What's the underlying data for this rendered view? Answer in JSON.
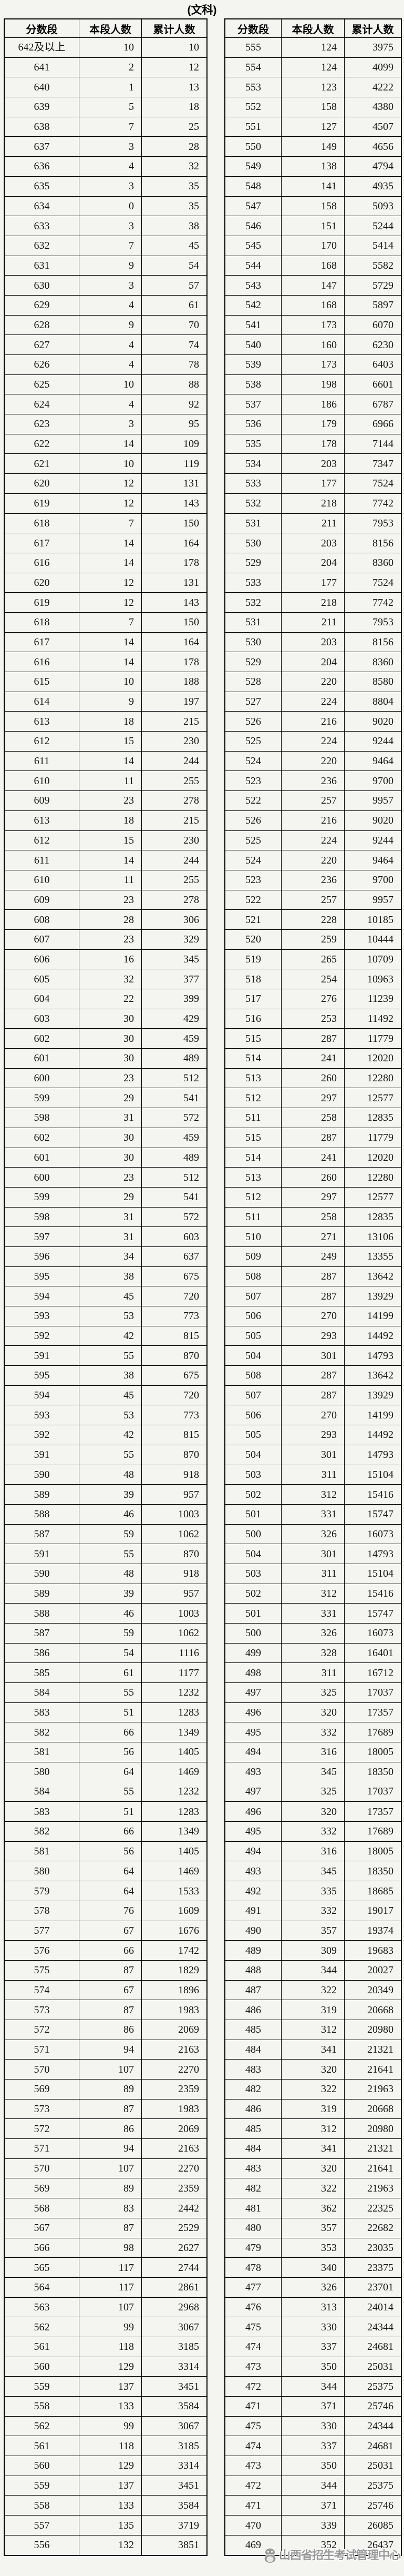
{
  "page": {
    "title": "(文科)",
    "background": "#f4f4f1",
    "border_color": "#000000",
    "watermark": {
      "icon": "mascot-icon",
      "text": "山西省招生考试管理中心",
      "color": "#8a8a8a"
    }
  },
  "tables": [
    {
      "name": "score-table-left",
      "headers": [
        "分数段",
        "本段人数",
        "累计人数"
      ],
      "rows": [
        [
          "642及以上",
          10,
          10
        ],
        [
          641,
          2,
          12
        ],
        [
          640,
          1,
          13
        ],
        [
          639,
          5,
          18
        ],
        [
          638,
          7,
          25
        ],
        [
          637,
          3,
          28
        ],
        [
          636,
          4,
          32
        ],
        [
          635,
          3,
          35
        ],
        [
          634,
          0,
          35
        ],
        [
          633,
          3,
          38
        ],
        [
          632,
          7,
          45
        ],
        [
          631,
          9,
          54
        ],
        [
          630,
          3,
          57
        ],
        [
          629,
          4,
          61
        ],
        [
          628,
          9,
          70
        ],
        [
          627,
          4,
          74
        ],
        [
          626,
          4,
          78
        ],
        [
          625,
          10,
          88
        ],
        [
          624,
          4,
          92
        ],
        [
          623,
          3,
          95
        ],
        [
          622,
          14,
          109
        ],
        [
          621,
          10,
          119
        ],
        [
          620,
          12,
          131
        ],
        [
          619,
          12,
          143
        ],
        [
          618,
          7,
          150
        ],
        [
          617,
          14,
          164
        ],
        [
          616,
          14,
          178
        ],
        [
          620,
          12,
          131
        ],
        [
          619,
          12,
          143
        ],
        [
          618,
          7,
          150
        ],
        [
          617,
          14,
          164
        ],
        [
          616,
          14,
          178
        ],
        [
          615,
          10,
          188
        ],
        [
          614,
          9,
          197
        ],
        [
          613,
          18,
          215
        ],
        [
          612,
          15,
          230
        ],
        [
          611,
          14,
          244
        ],
        [
          610,
          11,
          255
        ],
        [
          609,
          23,
          278
        ],
        [
          613,
          18,
          215
        ],
        [
          612,
          15,
          230
        ],
        [
          611,
          14,
          244
        ],
        [
          610,
          11,
          255
        ],
        [
          609,
          23,
          278
        ],
        [
          608,
          28,
          306
        ],
        [
          607,
          23,
          329
        ],
        [
          606,
          16,
          345
        ],
        [
          605,
          32,
          377
        ],
        [
          604,
          22,
          399
        ],
        [
          603,
          30,
          429
        ],
        [
          602,
          30,
          459
        ],
        [
          601,
          30,
          489
        ],
        [
          600,
          23,
          512
        ],
        [
          599,
          29,
          541
        ],
        [
          598,
          31,
          572
        ],
        [
          602,
          30,
          459
        ],
        [
          601,
          30,
          489
        ],
        [
          600,
          23,
          512
        ],
        [
          599,
          29,
          541
        ],
        [
          598,
          31,
          572
        ],
        [
          597,
          31,
          603
        ],
        [
          596,
          34,
          637
        ],
        [
          595,
          38,
          675
        ],
        [
          594,
          45,
          720
        ],
        [
          593,
          53,
          773
        ],
        [
          592,
          42,
          815
        ],
        [
          591,
          55,
          870
        ],
        [
          595,
          38,
          675
        ],
        [
          594,
          45,
          720
        ],
        [
          593,
          53,
          773
        ],
        [
          592,
          42,
          815
        ],
        [
          591,
          55,
          870
        ],
        [
          590,
          48,
          918
        ],
        [
          589,
          39,
          957
        ],
        [
          588,
          46,
          1003
        ],
        [
          587,
          59,
          1062
        ],
        [
          591,
          55,
          870
        ],
        [
          590,
          48,
          918
        ],
        [
          589,
          39,
          957
        ],
        [
          588,
          46,
          1003
        ],
        [
          587,
          59,
          1062
        ],
        [
          586,
          54,
          1116
        ],
        [
          585,
          61,
          1177
        ],
        [
          584,
          55,
          1232
        ],
        [
          583,
          51,
          1283
        ],
        [
          582,
          66,
          1349
        ],
        [
          581,
          56,
          1405
        ],
        {
          "double": [
            [
              580,
              64,
              1469
            ],
            [
              584,
              55,
              1232
            ]
          ]
        },
        [
          583,
          51,
          1283
        ],
        [
          582,
          66,
          1349
        ],
        [
          581,
          56,
          1405
        ],
        [
          580,
          64,
          1469
        ],
        [
          579,
          64,
          1533
        ],
        [
          578,
          76,
          1609
        ],
        [
          577,
          67,
          1676
        ],
        [
          576,
          66,
          1742
        ],
        [
          575,
          87,
          1829
        ],
        [
          574,
          67,
          1896
        ],
        [
          573,
          87,
          1983
        ],
        [
          572,
          86,
          2069
        ],
        [
          571,
          94,
          2163
        ],
        [
          570,
          107,
          2270
        ],
        [
          569,
          89,
          2359
        ],
        [
          573,
          87,
          1983
        ],
        [
          572,
          86,
          2069
        ],
        [
          571,
          94,
          2163
        ],
        [
          570,
          107,
          2270
        ],
        [
          569,
          89,
          2359
        ],
        [
          568,
          83,
          2442
        ],
        [
          567,
          87,
          2529
        ],
        [
          566,
          98,
          2627
        ],
        [
          565,
          117,
          2744
        ],
        [
          564,
          117,
          2861
        ],
        [
          563,
          107,
          2968
        ],
        [
          562,
          99,
          3067
        ],
        [
          561,
          118,
          3185
        ],
        [
          560,
          129,
          3314
        ],
        [
          559,
          137,
          3451
        ],
        [
          558,
          133,
          3584
        ],
        [
          562,
          99,
          3067
        ],
        [
          561,
          118,
          3185
        ],
        [
          560,
          129,
          3314
        ],
        [
          559,
          137,
          3451
        ],
        [
          558,
          133,
          3584
        ],
        [
          557,
          135,
          3719
        ],
        [
          556,
          132,
          3851
        ]
      ]
    },
    {
      "name": "score-table-right",
      "headers": [
        "分数段",
        "本段人数",
        "累计人数"
      ],
      "rows": [
        [
          555,
          124,
          3975
        ],
        [
          554,
          124,
          4099
        ],
        [
          553,
          123,
          4222
        ],
        [
          552,
          158,
          4380
        ],
        [
          551,
          127,
          4507
        ],
        [
          550,
          149,
          4656
        ],
        [
          549,
          138,
          4794
        ],
        [
          548,
          141,
          4935
        ],
        [
          547,
          158,
          5093
        ],
        [
          546,
          151,
          5244
        ],
        [
          545,
          170,
          5414
        ],
        [
          544,
          168,
          5582
        ],
        [
          543,
          147,
          5729
        ],
        [
          542,
          168,
          5897
        ],
        [
          541,
          173,
          6070
        ],
        [
          540,
          160,
          6230
        ],
        [
          539,
          173,
          6403
        ],
        [
          538,
          198,
          6601
        ],
        [
          537,
          186,
          6787
        ],
        [
          536,
          179,
          6966
        ],
        [
          535,
          178,
          7144
        ],
        [
          534,
          203,
          7347
        ],
        [
          533,
          177,
          7524
        ],
        [
          532,
          218,
          7742
        ],
        [
          531,
          211,
          7953
        ],
        [
          530,
          203,
          8156
        ],
        [
          529,
          204,
          8360
        ],
        [
          533,
          177,
          7524
        ],
        [
          532,
          218,
          7742
        ],
        [
          531,
          211,
          7953
        ],
        [
          530,
          203,
          8156
        ],
        [
          529,
          204,
          8360
        ],
        [
          528,
          220,
          8580
        ],
        [
          527,
          224,
          8804
        ],
        [
          526,
          216,
          9020
        ],
        [
          525,
          224,
          9244
        ],
        [
          524,
          220,
          9464
        ],
        [
          523,
          236,
          9700
        ],
        [
          522,
          257,
          9957
        ],
        [
          526,
          216,
          9020
        ],
        [
          525,
          224,
          9244
        ],
        [
          524,
          220,
          9464
        ],
        [
          523,
          236,
          9700
        ],
        [
          522,
          257,
          9957
        ],
        [
          521,
          228,
          10185
        ],
        [
          520,
          259,
          10444
        ],
        [
          519,
          265,
          10709
        ],
        [
          518,
          254,
          10963
        ],
        [
          517,
          276,
          11239
        ],
        [
          516,
          253,
          11492
        ],
        [
          515,
          287,
          11779
        ],
        [
          514,
          241,
          12020
        ],
        [
          513,
          260,
          12280
        ],
        [
          512,
          297,
          12577
        ],
        [
          511,
          258,
          12835
        ],
        [
          515,
          287,
          11779
        ],
        [
          514,
          241,
          12020
        ],
        [
          513,
          260,
          12280
        ],
        [
          512,
          297,
          12577
        ],
        [
          511,
          258,
          12835
        ],
        [
          510,
          271,
          13106
        ],
        [
          509,
          249,
          13355
        ],
        [
          508,
          287,
          13642
        ],
        [
          507,
          287,
          13929
        ],
        [
          506,
          270,
          14199
        ],
        [
          505,
          293,
          14492
        ],
        [
          504,
          301,
          14793
        ],
        [
          508,
          287,
          13642
        ],
        [
          507,
          287,
          13929
        ],
        [
          506,
          270,
          14199
        ],
        [
          505,
          293,
          14492
        ],
        [
          504,
          301,
          14793
        ],
        [
          503,
          311,
          15104
        ],
        [
          502,
          312,
          15416
        ],
        [
          501,
          331,
          15747
        ],
        [
          500,
          326,
          16073
        ],
        [
          504,
          301,
          14793
        ],
        [
          503,
          311,
          15104
        ],
        [
          502,
          312,
          15416
        ],
        [
          501,
          331,
          15747
        ],
        [
          500,
          326,
          16073
        ],
        [
          499,
          328,
          16401
        ],
        [
          498,
          311,
          16712
        ],
        [
          497,
          325,
          17037
        ],
        [
          496,
          320,
          17357
        ],
        [
          495,
          332,
          17689
        ],
        [
          494,
          316,
          18005
        ],
        {
          "double": [
            [
              493,
              345,
              18350
            ],
            [
              497,
              325,
              17037
            ]
          ]
        },
        [
          496,
          320,
          17357
        ],
        [
          495,
          332,
          17689
        ],
        [
          494,
          316,
          18005
        ],
        [
          493,
          345,
          18350
        ],
        [
          492,
          335,
          18685
        ],
        [
          491,
          332,
          19017
        ],
        [
          490,
          357,
          19374
        ],
        [
          489,
          309,
          19683
        ],
        [
          488,
          344,
          20027
        ],
        [
          487,
          322,
          20349
        ],
        [
          486,
          319,
          20668
        ],
        [
          485,
          312,
          20980
        ],
        [
          484,
          341,
          21321
        ],
        [
          483,
          320,
          21641
        ],
        [
          482,
          322,
          21963
        ],
        [
          486,
          319,
          20668
        ],
        [
          485,
          312,
          20980
        ],
        [
          484,
          341,
          21321
        ],
        [
          483,
          320,
          21641
        ],
        [
          482,
          322,
          21963
        ],
        [
          481,
          362,
          22325
        ],
        [
          480,
          357,
          22682
        ],
        [
          479,
          353,
          23035
        ],
        [
          478,
          340,
          23375
        ],
        [
          477,
          326,
          23701
        ],
        [
          476,
          313,
          24014
        ],
        [
          475,
          330,
          24344
        ],
        [
          474,
          337,
          24681
        ],
        [
          473,
          350,
          25031
        ],
        [
          472,
          344,
          25375
        ],
        [
          471,
          371,
          25746
        ],
        [
          475,
          330,
          24344
        ],
        [
          474,
          337,
          24681
        ],
        [
          473,
          350,
          25031
        ],
        [
          472,
          344,
          25375
        ],
        [
          471,
          371,
          25746
        ],
        [
          470,
          339,
          26085
        ],
        [
          469,
          352,
          26437
        ]
      ]
    }
  ]
}
